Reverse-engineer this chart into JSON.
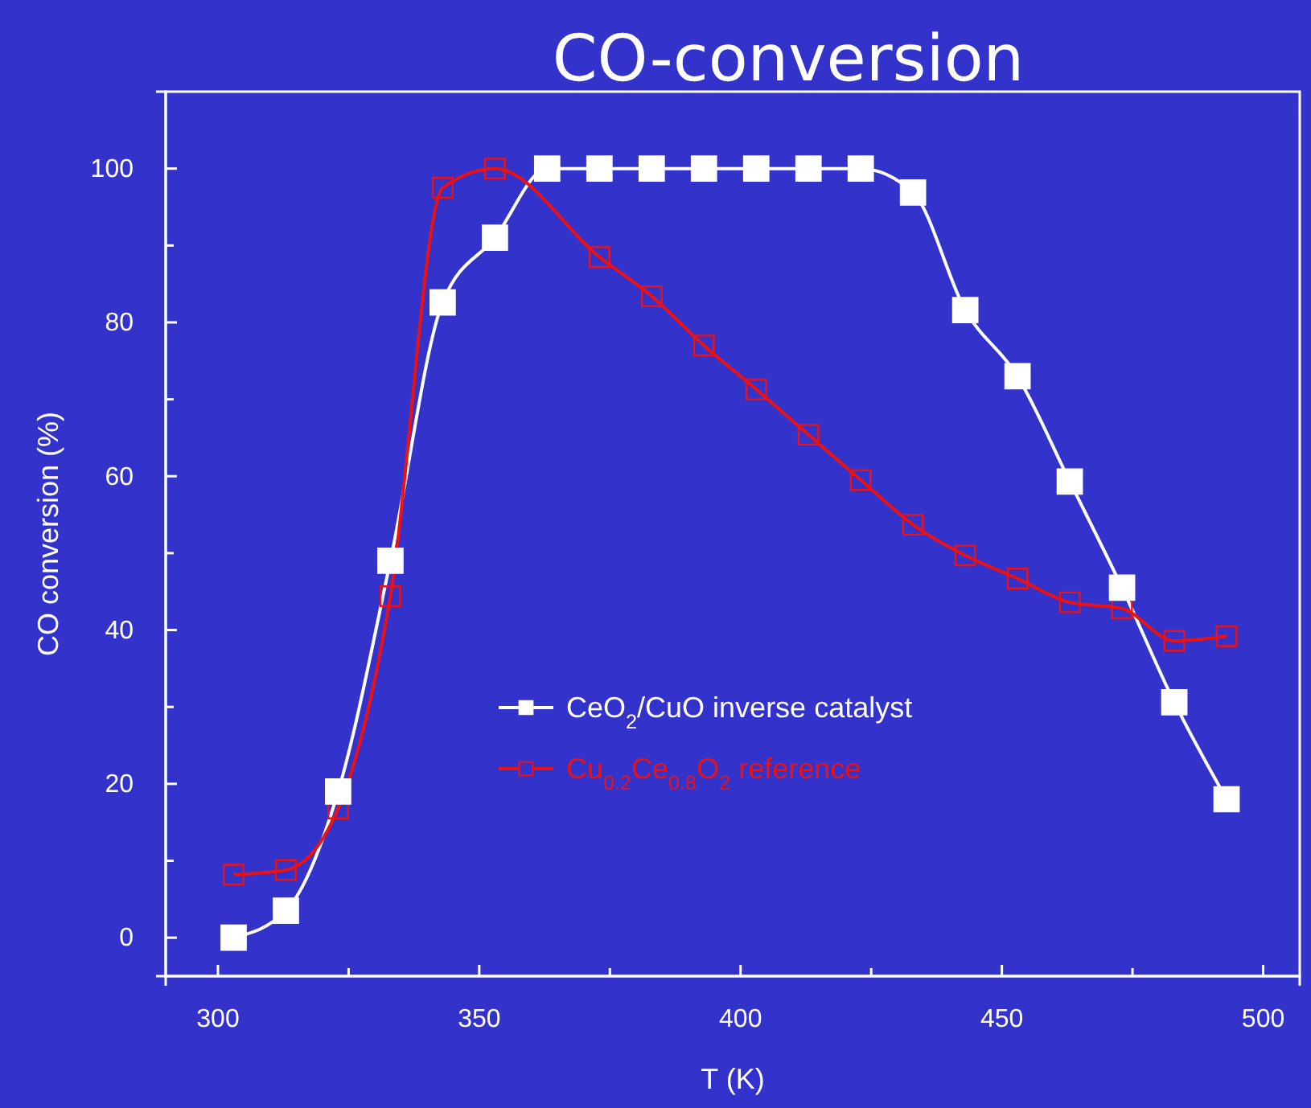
{
  "chart_data": {
    "type": "line",
    "title": "CO-conversion",
    "xlabel": "T (K)",
    "ylabel": "CO conversion (%)",
    "x": [
      303,
      313,
      323,
      333,
      343,
      353,
      363,
      373,
      383,
      393,
      403,
      413,
      423,
      433,
      443,
      453,
      463,
      473,
      483,
      493
    ],
    "series": [
      {
        "name": "CeO$_{2}$/CuO inverse catalyst",
        "color": "#ffffff",
        "values": [
          0,
          3.5,
          19,
          49,
          82.6,
          91,
          100,
          100,
          100,
          100,
          100,
          100,
          100,
          96.9,
          81.6,
          73,
          59.3,
          45.5,
          30.6,
          18
        ]
      },
      {
        "name": "Cu$_{0.2}$Ce$_{0.8}$O$_{2}$ reference",
        "color": "#ee1111",
        "values": [
          8.2,
          8.8,
          16.8,
          44.4,
          97.5,
          100,
          null,
          88.5,
          83.4,
          77,
          71.3,
          65.4,
          59.5,
          53.7,
          49.7,
          46.7,
          43.6,
          42.8,
          38.6,
          39.2
        ]
      }
    ],
    "xlim": [
      290,
      507
    ],
    "ylim": [
      -5,
      110
    ],
    "xticks": [
      300,
      {
        "value": 325,
        "label": null
      },
      350,
      {
        "value": 375,
        "label": null
      },
      400,
      {
        "value": 425,
        "label": null
      },
      450,
      {
        "value": 475,
        "label": null
      },
      500
    ],
    "yticks": [
      0,
      {
        "value": 10,
        "label": null
      },
      20,
      {
        "value": 30,
        "label": null
      },
      40,
      {
        "value": 50,
        "label": null
      },
      60,
      {
        "value": 70,
        "label": null
      },
      80,
      {
        "value": 90,
        "label": null
      },
      100
    ],
    "grid": false,
    "legend": "bottom",
    "marker": "square",
    "line_style": "solid"
  }
}
